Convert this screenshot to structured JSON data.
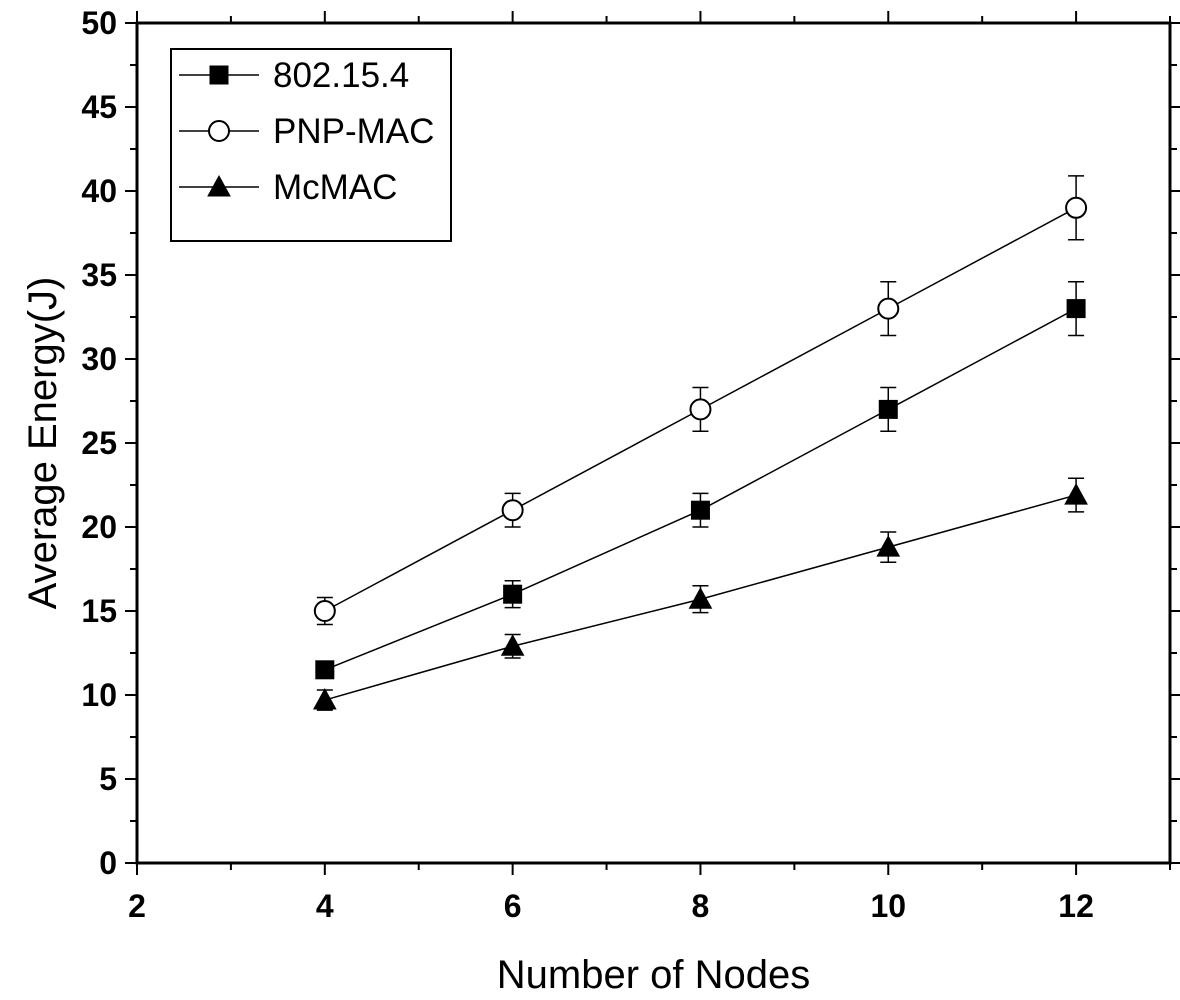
{
  "chart_data": {
    "type": "line",
    "title": "",
    "xlabel": "Number of Nodes",
    "ylabel": "Average Energy(J)",
    "xlim": [
      2,
      13
    ],
    "ylim": [
      0,
      50
    ],
    "x_ticks": [
      2,
      4,
      6,
      8,
      10,
      12
    ],
    "x_tick_labels": [
      "2",
      "4",
      "6",
      "8",
      "10",
      "12"
    ],
    "y_ticks": [
      0,
      5,
      10,
      15,
      20,
      25,
      30,
      35,
      40,
      45,
      50
    ],
    "y_tick_labels": [
      "0",
      "5",
      "10",
      "15",
      "20",
      "25",
      "30",
      "35",
      "40",
      "45",
      "50"
    ],
    "x": [
      4,
      6,
      8,
      10,
      12
    ],
    "series": [
      {
        "name": "802.15.4",
        "marker": "filled-square",
        "values": [
          11.5,
          16,
          21,
          27,
          33
        ],
        "errors": [
          0.3,
          0.8,
          1.0,
          1.3,
          1.6
        ]
      },
      {
        "name": "PNP-MAC",
        "marker": "open-circle",
        "values": [
          15,
          21,
          27,
          33,
          39
        ],
        "errors": [
          0.8,
          1.0,
          1.3,
          1.6,
          1.9
        ]
      },
      {
        "name": "McMAC",
        "marker": "filled-triangle",
        "values": [
          9.7,
          12.9,
          15.7,
          18.8,
          21.9
        ],
        "errors": [
          0.6,
          0.7,
          0.8,
          0.9,
          1.0
        ]
      }
    ],
    "legend_position": "top-left",
    "grid": false
  }
}
